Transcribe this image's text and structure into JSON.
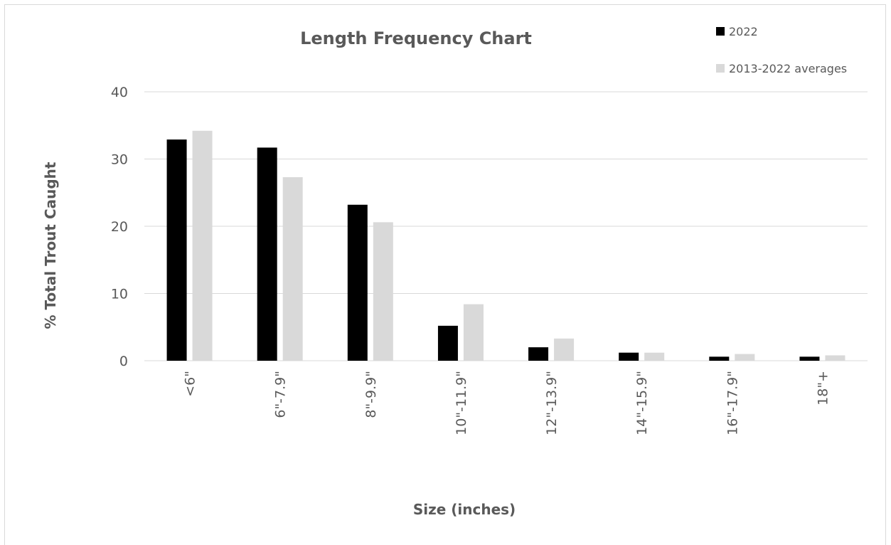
{
  "chart_data": {
    "type": "bar",
    "title": "Length Frequency Chart",
    "xlabel": "Size (inches)",
    "ylabel": "% Total Trout  Caught",
    "ylim": [
      0,
      40
    ],
    "yticks": [
      0,
      10,
      20,
      30,
      40
    ],
    "grid": true,
    "legend_position": "top-right",
    "categories": [
      "<6\"",
      "6\"-7.9\"",
      "8\"-9.9\"",
      "10\"-11.9\"",
      "12\"-13.9\"",
      "14\"-15.9\"",
      "16\"-17.9\"",
      "18\"+"
    ],
    "series": [
      {
        "name": "2022",
        "color": "#000000",
        "values": [
          32.9,
          31.7,
          23.2,
          5.2,
          2.0,
          1.2,
          0.6,
          0.6
        ]
      },
      {
        "name": "2013-2022 averages",
        "color": "#d9d9d9",
        "values": [
          34.2,
          27.3,
          20.6,
          8.4,
          3.3,
          1.2,
          1.0,
          0.8
        ]
      }
    ]
  }
}
